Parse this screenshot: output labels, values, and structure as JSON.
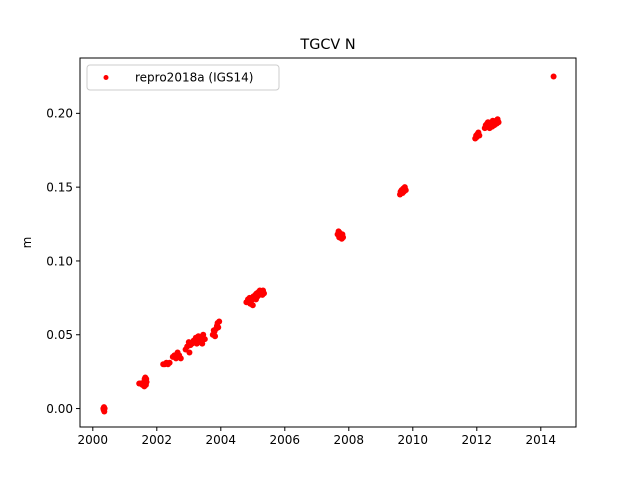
{
  "chart_data": {
    "type": "scatter",
    "title": "TGCV N",
    "xlabel": "",
    "ylabel": "m",
    "xlim": [
      1999.6,
      2015.1
    ],
    "ylim": [
      -0.0125,
      0.2375
    ],
    "x_ticks": [
      2000,
      2002,
      2004,
      2006,
      2008,
      2010,
      2012,
      2014
    ],
    "x_tick_labels": [
      "2000",
      "2002",
      "2004",
      "2006",
      "2008",
      "2010",
      "2012",
      "2014"
    ],
    "y_ticks": [
      0.0,
      0.05,
      0.1,
      0.15,
      0.2
    ],
    "y_tick_labels": [
      "0.00",
      "0.05",
      "0.10",
      "0.15",
      "0.20"
    ],
    "grid": false,
    "legend": {
      "position": "top-left",
      "entries": [
        "repro2018a (IGS14)"
      ]
    },
    "colors": {
      "series": "#ff0000",
      "axes": "#000000",
      "background": "#ffffff"
    },
    "series": [
      {
        "name": "repro2018a (IGS14)",
        "marker": "circle",
        "points": [
          [
            2000.33,
            0.0
          ],
          [
            2000.34,
            -0.001
          ],
          [
            2000.35,
            0.001
          ],
          [
            2000.36,
            -0.002
          ],
          [
            2000.37,
            0.0
          ],
          [
            2001.45,
            0.017
          ],
          [
            2001.48,
            0.017
          ],
          [
            2001.52,
            0.017
          ],
          [
            2001.55,
            0.016
          ],
          [
            2001.58,
            0.016
          ],
          [
            2001.6,
            0.018
          ],
          [
            2001.61,
            0.015
          ],
          [
            2001.62,
            0.02
          ],
          [
            2001.63,
            0.017
          ],
          [
            2001.64,
            0.021
          ],
          [
            2001.65,
            0.019
          ],
          [
            2001.66,
            0.016
          ],
          [
            2001.67,
            0.02
          ],
          [
            2001.68,
            0.018
          ],
          [
            2002.2,
            0.03
          ],
          [
            2002.25,
            0.03
          ],
          [
            2002.3,
            0.031
          ],
          [
            2002.35,
            0.03
          ],
          [
            2002.4,
            0.031
          ],
          [
            2002.5,
            0.035
          ],
          [
            2002.55,
            0.036
          ],
          [
            2002.6,
            0.034
          ],
          [
            2002.65,
            0.038
          ],
          [
            2002.7,
            0.036
          ],
          [
            2002.75,
            0.034
          ],
          [
            2002.9,
            0.04
          ],
          [
            2002.95,
            0.042
          ],
          [
            2003.0,
            0.045
          ],
          [
            2003.02,
            0.038
          ],
          [
            2003.05,
            0.043
          ],
          [
            2003.1,
            0.044
          ],
          [
            2003.15,
            0.046
          ],
          [
            2003.2,
            0.045
          ],
          [
            2003.22,
            0.048
          ],
          [
            2003.25,
            0.044
          ],
          [
            2003.28,
            0.047
          ],
          [
            2003.3,
            0.049
          ],
          [
            2003.35,
            0.046
          ],
          [
            2003.4,
            0.048
          ],
          [
            2003.42,
            0.044
          ],
          [
            2003.45,
            0.05
          ],
          [
            2003.5,
            0.047
          ],
          [
            2003.75,
            0.05
          ],
          [
            2003.78,
            0.053
          ],
          [
            2003.8,
            0.052
          ],
          [
            2003.82,
            0.049
          ],
          [
            2003.85,
            0.054
          ],
          [
            2003.88,
            0.056
          ],
          [
            2003.9,
            0.058
          ],
          [
            2003.92,
            0.055
          ],
          [
            2003.95,
            0.059
          ],
          [
            2004.8,
            0.072
          ],
          [
            2004.85,
            0.074
          ],
          [
            2004.9,
            0.075
          ],
          [
            2004.92,
            0.071
          ],
          [
            2004.95,
            0.073
          ],
          [
            2005.0,
            0.07
          ],
          [
            2005.02,
            0.076
          ],
          [
            2005.05,
            0.075
          ],
          [
            2005.08,
            0.077
          ],
          [
            2005.1,
            0.074
          ],
          [
            2005.12,
            0.078
          ],
          [
            2005.15,
            0.076
          ],
          [
            2005.18,
            0.079
          ],
          [
            2005.2,
            0.077
          ],
          [
            2005.22,
            0.08
          ],
          [
            2005.25,
            0.078
          ],
          [
            2005.28,
            0.079
          ],
          [
            2005.3,
            0.077
          ],
          [
            2005.32,
            0.08
          ],
          [
            2005.35,
            0.078
          ],
          [
            2007.65,
            0.118
          ],
          [
            2007.68,
            0.12
          ],
          [
            2007.7,
            0.116
          ],
          [
            2007.72,
            0.119
          ],
          [
            2007.75,
            0.117
          ],
          [
            2007.78,
            0.115
          ],
          [
            2007.8,
            0.118
          ],
          [
            2007.82,
            0.116
          ],
          [
            2009.6,
            0.145
          ],
          [
            2009.62,
            0.147
          ],
          [
            2009.65,
            0.148
          ],
          [
            2009.68,
            0.146
          ],
          [
            2009.7,
            0.149
          ],
          [
            2009.72,
            0.147
          ],
          [
            2009.75,
            0.15
          ],
          [
            2009.78,
            0.148
          ],
          [
            2011.95,
            0.183
          ],
          [
            2011.98,
            0.185
          ],
          [
            2012.0,
            0.184
          ],
          [
            2012.02,
            0.186
          ],
          [
            2012.05,
            0.187
          ],
          [
            2012.08,
            0.185
          ],
          [
            2012.25,
            0.19
          ],
          [
            2012.28,
            0.192
          ],
          [
            2012.3,
            0.191
          ],
          [
            2012.32,
            0.193
          ],
          [
            2012.35,
            0.194
          ],
          [
            2012.38,
            0.191
          ],
          [
            2012.4,
            0.19
          ],
          [
            2012.42,
            0.192
          ],
          [
            2012.45,
            0.194
          ],
          [
            2012.48,
            0.191
          ],
          [
            2012.5,
            0.195
          ],
          [
            2012.52,
            0.193
          ],
          [
            2012.55,
            0.192
          ],
          [
            2012.58,
            0.194
          ],
          [
            2012.6,
            0.195
          ],
          [
            2012.62,
            0.193
          ],
          [
            2012.65,
            0.196
          ],
          [
            2012.68,
            0.194
          ],
          [
            2014.4,
            0.225
          ]
        ]
      }
    ]
  }
}
